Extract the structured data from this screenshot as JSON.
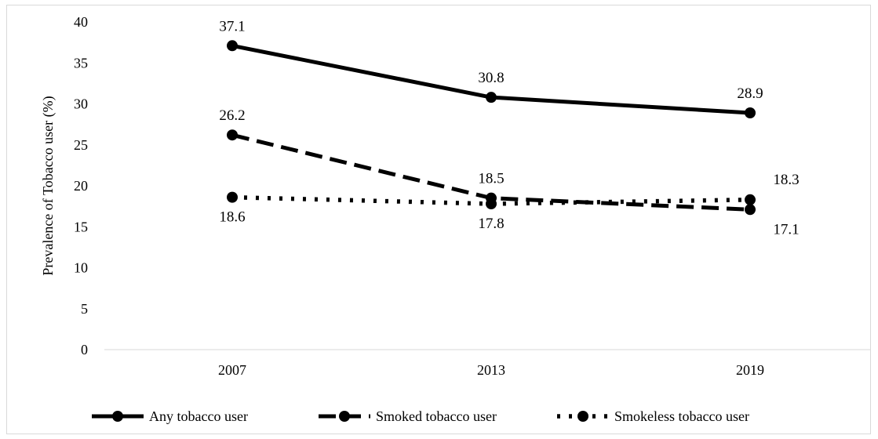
{
  "chart_data": {
    "type": "line",
    "title": "",
    "xlabel": "",
    "ylabel": "Prevalence of Tobacco user (%)",
    "categories": [
      "2007",
      "2013",
      "2019"
    ],
    "ylim": [
      0,
      40
    ],
    "y_ticks": [
      "0",
      "5",
      "10",
      "15",
      "20",
      "25",
      "30",
      "35",
      "40"
    ],
    "grid": false,
    "legend_position": "bottom",
    "series": [
      {
        "name": "Any tobacco user",
        "values": [
          37.1,
          30.8,
          28.9
        ],
        "labels": [
          "37.1",
          "30.8",
          "28.9"
        ],
        "line_style": "solid"
      },
      {
        "name": "Smoked tobacco user",
        "values": [
          26.2,
          18.5,
          17.1
        ],
        "labels": [
          "26.2",
          "18.5",
          "17.1"
        ],
        "line_style": "dashed"
      },
      {
        "name": "Smokeless tobacco user",
        "values": [
          18.6,
          17.8,
          18.3
        ],
        "labels": [
          "18.6",
          "17.8",
          "18.3"
        ],
        "line_style": "dotted"
      }
    ],
    "colors": {
      "line": "#000000",
      "axis": "#d9d9d9",
      "frame": "#d9d9d9"
    }
  }
}
